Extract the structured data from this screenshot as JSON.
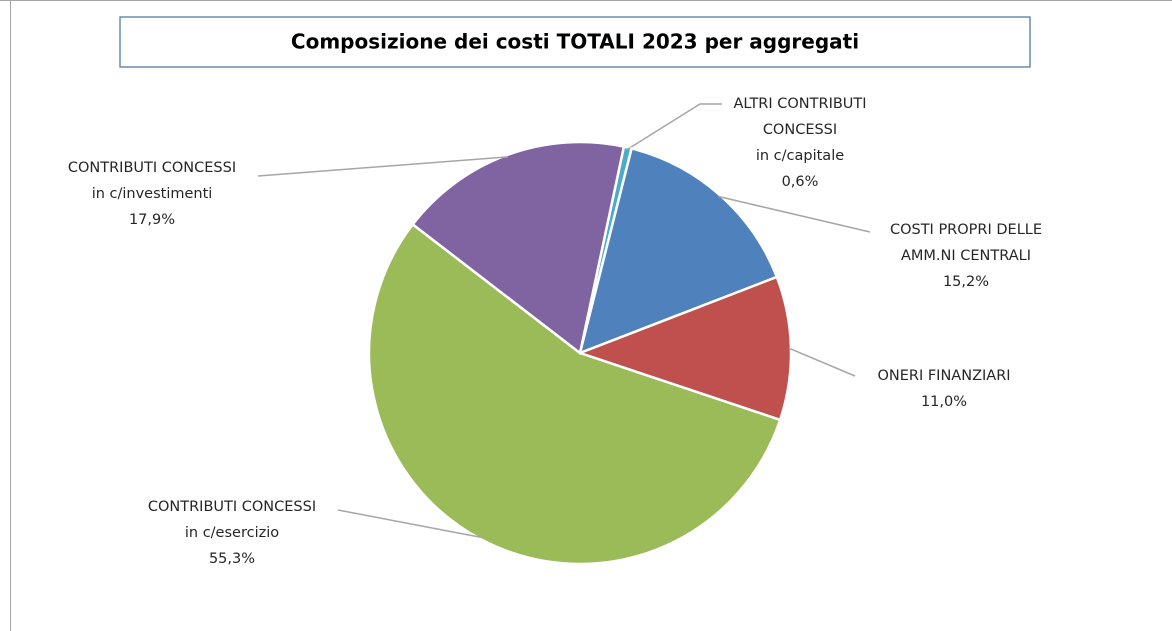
{
  "chart_data": {
    "type": "pie",
    "title": "Composizione dei costi TOTALI 2023 per aggregati",
    "categories": [
      [
        "ALTRI CONTRIBUTI",
        "CONCESSI",
        "in c/capitale"
      ],
      [
        "COSTI PROPRI DELLE",
        "AMM.NI CENTRALI"
      ],
      [
        "ONERI FINANZIARI"
      ],
      [
        "CONTRIBUTI CONCESSI",
        "in c/esercizio"
      ],
      [
        "CONTRIBUTI CONCESSI",
        "in c/investimenti"
      ]
    ],
    "values": [
      0.6,
      15.2,
      11.0,
      55.3,
      17.9
    ],
    "value_labels": [
      "0,6%",
      "15,2%",
      "11,0%",
      "55,3%",
      "17,9%"
    ],
    "colors": [
      "#4bacc6",
      "#4f81bd",
      "#c0504d",
      "#9bbb59",
      "#8064a2"
    ]
  }
}
